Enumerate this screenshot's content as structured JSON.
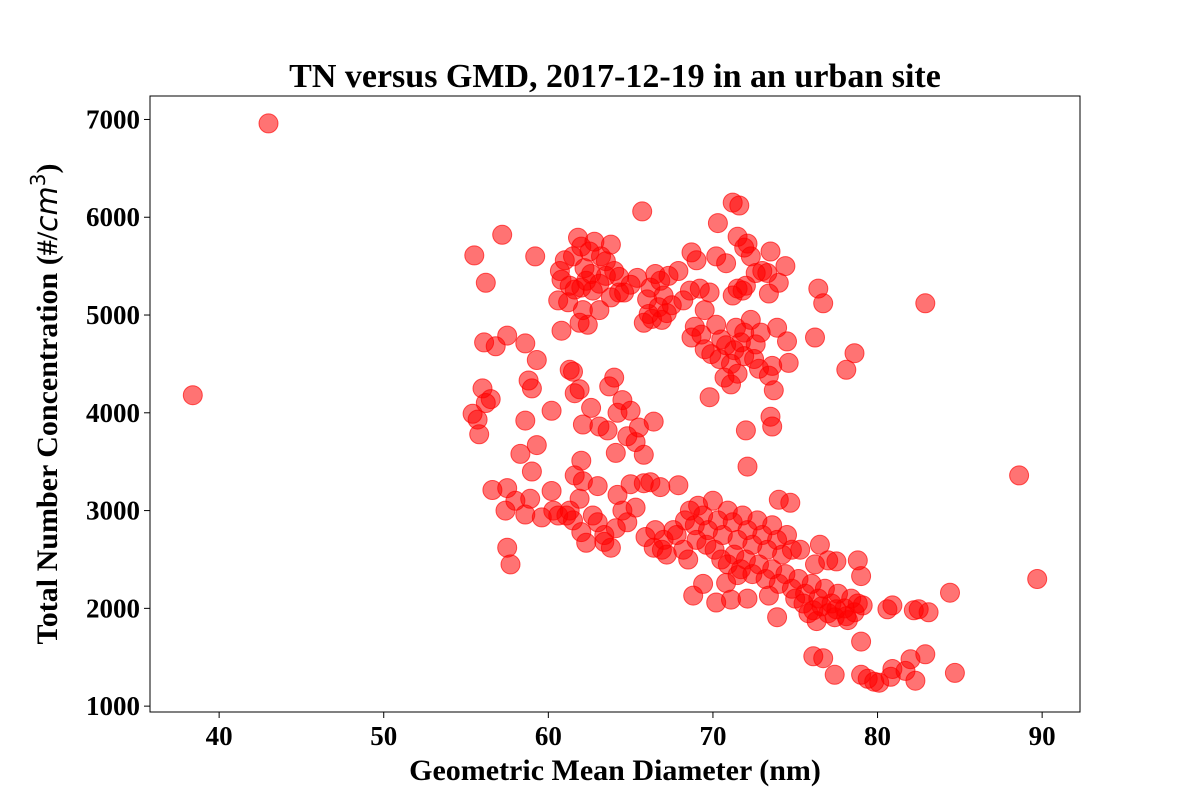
{
  "chart_data": {
    "type": "scatter",
    "title": "TN versus GMD, 2017-12-19 in an urban site",
    "xlabel": "Geometric Mean Diameter (nm)",
    "ylabel": "Total Number Concentration (#/cm³)",
    "ylabel_base": "Total Number Concentration (#/",
    "ylabel_unit": "cm",
    "ylabel_exp": "3",
    "ylabel_close": ")",
    "xlim": [
      35.8,
      92.3
    ],
    "ylim": [
      940,
      7240
    ],
    "x_ticks": [
      40,
      50,
      60,
      70,
      80,
      90
    ],
    "y_ticks": [
      1000,
      2000,
      3000,
      4000,
      5000,
      6000,
      7000
    ],
    "grid": false,
    "color": "#ff0000",
    "points": [
      [
        43.0,
        6960
      ],
      [
        38.4,
        4180
      ],
      [
        55.5,
        5610
      ],
      [
        56.2,
        5330
      ],
      [
        57.2,
        5820
      ],
      [
        59.2,
        5600
      ],
      [
        57.5,
        4790
      ],
      [
        56.1,
        4720
      ],
      [
        56.8,
        4680
      ],
      [
        58.6,
        4710
      ],
      [
        59.3,
        4540
      ],
      [
        58.8,
        4330
      ],
      [
        59.0,
        4250
      ],
      [
        56.0,
        4250
      ],
      [
        56.5,
        4140
      ],
      [
        56.2,
        4100
      ],
      [
        55.4,
        3990
      ],
      [
        55.7,
        3930
      ],
      [
        55.8,
        3780
      ],
      [
        58.6,
        3920
      ],
      [
        59.3,
        3670
      ],
      [
        58.3,
        3580
      ],
      [
        60.2,
        4020
      ],
      [
        59.0,
        3400
      ],
      [
        57.5,
        3230
      ],
      [
        56.6,
        3210
      ],
      [
        57.4,
        3000
      ],
      [
        57.5,
        2620
      ],
      [
        57.7,
        2450
      ],
      [
        58.0,
        3100
      ],
      [
        58.6,
        2960
      ],
      [
        58.9,
        3120
      ],
      [
        59.6,
        2930
      ],
      [
        60.3,
        3000
      ],
      [
        60.6,
        2950
      ],
      [
        60.2,
        3200
      ],
      [
        60.7,
        5450
      ],
      [
        60.8,
        5360
      ],
      [
        61.0,
        5560
      ],
      [
        61.5,
        5600
      ],
      [
        61.8,
        5790
      ],
      [
        62.0,
        5700
      ],
      [
        62.5,
        5650
      ],
      [
        62.8,
        5750
      ],
      [
        63.2,
        5600
      ],
      [
        63.5,
        5550
      ],
      [
        63.8,
        5720
      ],
      [
        64.0,
        5450
      ],
      [
        62.2,
        5480
      ],
      [
        62.6,
        5420
      ],
      [
        61.3,
        5300
      ],
      [
        61.6,
        5260
      ],
      [
        62.0,
        5280
      ],
      [
        62.3,
        5350
      ],
      [
        62.7,
        5250
      ],
      [
        63.1,
        5320
      ],
      [
        63.5,
        5400
      ],
      [
        63.8,
        5180
      ],
      [
        64.3,
        5390
      ],
      [
        64.6,
        5230
      ],
      [
        65.0,
        5310
      ],
      [
        65.4,
        5380
      ],
      [
        60.6,
        5150
      ],
      [
        61.2,
        5130
      ],
      [
        62.1,
        5050
      ],
      [
        62.4,
        4900
      ],
      [
        61.9,
        4920
      ],
      [
        60.8,
        4840
      ],
      [
        63.1,
        5050
      ],
      [
        65.7,
        6060
      ],
      [
        64.3,
        5230
      ],
      [
        61.3,
        4440
      ],
      [
        61.5,
        4420
      ],
      [
        61.9,
        4240
      ],
      [
        61.6,
        4200
      ],
      [
        62.1,
        3880
      ],
      [
        62.6,
        4050
      ],
      [
        63.1,
        3860
      ],
      [
        63.7,
        4270
      ],
      [
        64.0,
        4360
      ],
      [
        64.2,
        4000
      ],
      [
        63.6,
        3820
      ],
      [
        64.1,
        3590
      ],
      [
        64.5,
        4130
      ],
      [
        65.0,
        4020
      ],
      [
        64.8,
        3760
      ],
      [
        65.3,
        3700
      ],
      [
        65.5,
        3850
      ],
      [
        65.8,
        3570
      ],
      [
        66.4,
        3910
      ],
      [
        61.6,
        3360
      ],
      [
        62.0,
        3510
      ],
      [
        62.1,
        3300
      ],
      [
        63.0,
        3250
      ],
      [
        61.3,
        3000
      ],
      [
        61.5,
        2900
      ],
      [
        62.0,
        2780
      ],
      [
        62.3,
        2670
      ],
      [
        62.7,
        2950
      ],
      [
        63.0,
        2880
      ],
      [
        63.4,
        2750
      ],
      [
        63.8,
        2620
      ],
      [
        64.1,
        2820
      ],
      [
        64.5,
        3000
      ],
      [
        64.8,
        2880
      ],
      [
        61.1,
        2950
      ],
      [
        61.9,
        3120
      ],
      [
        63.4,
        2680
      ],
      [
        64.2,
        3160
      ],
      [
        65.0,
        3270
      ],
      [
        65.3,
        3030
      ],
      [
        65.8,
        3280
      ],
      [
        65.9,
        2730
      ],
      [
        66.2,
        3290
      ],
      [
        66.8,
        3240
      ],
      [
        66.4,
        2620
      ],
      [
        66.9,
        2600
      ],
      [
        66.0,
        5160
      ],
      [
        66.2,
        5280
      ],
      [
        66.5,
        5420
      ],
      [
        66.8,
        5350
      ],
      [
        67.0,
        5200
      ],
      [
        67.3,
        5400
      ],
      [
        67.5,
        5100
      ],
      [
        67.9,
        5450
      ],
      [
        68.2,
        5150
      ],
      [
        68.6,
        5250
      ],
      [
        66.1,
        5010
      ],
      [
        66.3,
        4960
      ],
      [
        65.8,
        4920
      ],
      [
        66.7,
        5080
      ],
      [
        67.2,
        5020
      ],
      [
        66.9,
        4950
      ],
      [
        68.7,
        5640
      ],
      [
        69.0,
        5560
      ],
      [
        69.2,
        5270
      ],
      [
        69.5,
        5050
      ],
      [
        69.8,
        5230
      ],
      [
        70.2,
        5600
      ],
      [
        70.3,
        5940
      ],
      [
        71.2,
        6150
      ],
      [
        71.6,
        6120
      ],
      [
        71.5,
        5800
      ],
      [
        71.9,
        5690
      ],
      [
        72.3,
        5600
      ],
      [
        70.8,
        5530
      ],
      [
        72.1,
        5730
      ],
      [
        73.3,
        5430
      ],
      [
        73.0,
        5450
      ],
      [
        73.5,
        5650
      ],
      [
        73.4,
        5220
      ],
      [
        74.0,
        5330
      ],
      [
        74.4,
        5500
      ],
      [
        72.6,
        5430
      ],
      [
        71.5,
        5270
      ],
      [
        71.8,
        5250
      ],
      [
        72.0,
        5300
      ],
      [
        71.2,
        5200
      ],
      [
        68.9,
        4880
      ],
      [
        68.7,
        4770
      ],
      [
        69.3,
        4800
      ],
      [
        69.5,
        4650
      ],
      [
        69.9,
        4600
      ],
      [
        70.2,
        4900
      ],
      [
        70.5,
        4750
      ],
      [
        70.4,
        4550
      ],
      [
        70.8,
        4690
      ],
      [
        71.1,
        4500
      ],
      [
        71.3,
        4640
      ],
      [
        71.5,
        4400
      ],
      [
        71.7,
        4720
      ],
      [
        71.9,
        4580
      ],
      [
        70.7,
        4360
      ],
      [
        71.1,
        4290
      ],
      [
        71.4,
        4870
      ],
      [
        71.9,
        4820
      ],
      [
        72.3,
        4950
      ],
      [
        72.6,
        4700
      ],
      [
        72.9,
        4820
      ],
      [
        72.5,
        4550
      ],
      [
        72.8,
        4450
      ],
      [
        73.4,
        4380
      ],
      [
        73.6,
        4480
      ],
      [
        73.9,
        4870
      ],
      [
        74.5,
        4730
      ],
      [
        74.6,
        4510
      ],
      [
        69.8,
        4160
      ],
      [
        73.7,
        4230
      ],
      [
        73.5,
        3960
      ],
      [
        73.6,
        3860
      ],
      [
        72.0,
        3820
      ],
      [
        72.1,
        3450
      ],
      [
        76.2,
        4770
      ],
      [
        76.4,
        5270
      ],
      [
        76.7,
        5120
      ],
      [
        78.6,
        4610
      ],
      [
        78.1,
        4440
      ],
      [
        82.9,
        5120
      ],
      [
        88.6,
        3360
      ],
      [
        68.3,
        2900
      ],
      [
        68.6,
        3000
      ],
      [
        68.9,
        2850
      ],
      [
        69.1,
        3050
      ],
      [
        69.4,
        2950
      ],
      [
        69.7,
        2800
      ],
      [
        70.0,
        3100
      ],
      [
        70.3,
        2900
      ],
      [
        70.6,
        2750
      ],
      [
        70.9,
        3000
      ],
      [
        71.2,
        2880
      ],
      [
        71.5,
        2700
      ],
      [
        71.8,
        2950
      ],
      [
        72.1,
        2800
      ],
      [
        72.4,
        2650
      ],
      [
        72.7,
        2900
      ],
      [
        73.0,
        2750
      ],
      [
        73.3,
        2600
      ],
      [
        73.6,
        2850
      ],
      [
        73.9,
        2700
      ],
      [
        74.2,
        2550
      ],
      [
        74.5,
        2750
      ],
      [
        74.8,
        2600
      ],
      [
        69.6,
        2650
      ],
      [
        70.1,
        2600
      ],
      [
        70.5,
        2500
      ],
      [
        70.9,
        2450
      ],
      [
        71.3,
        2550
      ],
      [
        71.7,
        2400
      ],
      [
        72.0,
        2500
      ],
      [
        72.4,
        2350
      ],
      [
        72.8,
        2450
      ],
      [
        73.2,
        2300
      ],
      [
        73.6,
        2400
      ],
      [
        74.0,
        2250
      ],
      [
        74.4,
        2350
      ],
      [
        74.8,
        2200
      ],
      [
        75.2,
        2300
      ],
      [
        75.6,
        2150
      ],
      [
        76.0,
        2250
      ],
      [
        76.4,
        2100
      ],
      [
        76.8,
        2200
      ],
      [
        77.2,
        2050
      ],
      [
        77.6,
        2150
      ],
      [
        78.0,
        2000
      ],
      [
        78.4,
        2100
      ],
      [
        78.8,
        2050
      ],
      [
        75.0,
        2100
      ],
      [
        75.5,
        2050
      ],
      [
        76.1,
        1980
      ],
      [
        76.6,
        2020
      ],
      [
        77.0,
        1950
      ],
      [
        77.5,
        1990
      ],
      [
        78.1,
        1920
      ],
      [
        78.6,
        1960
      ],
      [
        79.1,
        2030
      ],
      [
        75.8,
        1950
      ],
      [
        76.3,
        1870
      ],
      [
        77.4,
        1910
      ],
      [
        78.2,
        1880
      ],
      [
        67.2,
        2550
      ],
      [
        67.8,
        2750
      ],
      [
        68.2,
        2600
      ],
      [
        67.6,
        2800
      ],
      [
        68.5,
        2500
      ],
      [
        69.0,
        2700
      ],
      [
        67.0,
        2700
      ],
      [
        66.5,
        2800
      ],
      [
        67.9,
        3260
      ],
      [
        68.8,
        2130
      ],
      [
        69.4,
        2250
      ],
      [
        70.2,
        2060
      ],
      [
        70.8,
        2260
      ],
      [
        71.1,
        2090
      ],
      [
        71.5,
        2340
      ],
      [
        72.1,
        2100
      ],
      [
        73.4,
        2130
      ],
      [
        73.9,
        1910
      ],
      [
        74.7,
        3080
      ],
      [
        74.0,
        3110
      ],
      [
        75.3,
        2600
      ],
      [
        76.5,
        2650
      ],
      [
        76.2,
        2450
      ],
      [
        77.0,
        2490
      ],
      [
        77.5,
        2480
      ],
      [
        78.8,
        2490
      ],
      [
        79.0,
        2330
      ],
      [
        76.1,
        1510
      ],
      [
        76.7,
        1490
      ],
      [
        77.4,
        1320
      ],
      [
        79.0,
        1660
      ],
      [
        79.0,
        1320
      ],
      [
        79.4,
        1280
      ],
      [
        79.8,
        1250
      ],
      [
        80.1,
        1240
      ],
      [
        80.8,
        1300
      ],
      [
        80.9,
        1380
      ],
      [
        81.7,
        1360
      ],
      [
        82.0,
        1480
      ],
      [
        82.3,
        1260
      ],
      [
        82.9,
        1530
      ],
      [
        84.7,
        1340
      ],
      [
        80.6,
        1990
      ],
      [
        80.9,
        2030
      ],
      [
        82.2,
        1980
      ],
      [
        82.5,
        1990
      ],
      [
        83.1,
        1960
      ],
      [
        84.4,
        2160
      ],
      [
        89.7,
        2300
      ]
    ]
  }
}
